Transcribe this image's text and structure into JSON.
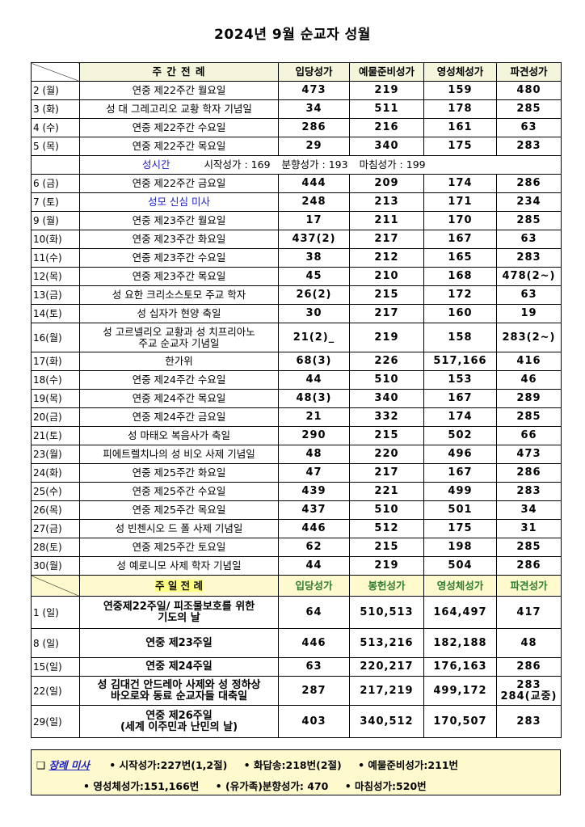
{
  "title": "2024년 9월 순교자 성월",
  "weekday_header": {
    "label": "주 간 전 례",
    "cols": [
      "입당성가",
      "예물준비성가",
      "영성체성가",
      "파견성가"
    ]
  },
  "weekday_rows_a": [
    {
      "day": "2 (월)",
      "name": "연중 제22주간 월요일",
      "v": [
        "473",
        "219",
        "159",
        "480"
      ]
    },
    {
      "day": "3 (화)",
      "name": "성 대 그레고리오 교황 학자 기념일",
      "v": [
        "34",
        "511",
        "178",
        "285"
      ]
    },
    {
      "day": "4 (수)",
      "name": "연중 제22주간 수요일",
      "v": [
        "286",
        "216",
        "161",
        "63"
      ]
    },
    {
      "day": "5 (목)",
      "name": "연중 제22주간 목요일",
      "v": [
        "29",
        "340",
        "175",
        "283"
      ]
    }
  ],
  "schedule": {
    "label": "성시간",
    "start": "시작성가 : 169",
    "incense": "분향성가 : 193",
    "end": "마침성가 : 199"
  },
  "weekday_rows_b": [
    {
      "day": "6 (금)",
      "name": "연중 제22주간 금요일",
      "v": [
        "444",
        "209",
        "174",
        "286"
      ]
    },
    {
      "day": "7 (토)",
      "name": "성모 신심 미사",
      "v": [
        "248",
        "213",
        "171",
        "234"
      ],
      "blue": true
    },
    {
      "day": "9 (월)",
      "name": "연중 제23주간 월요일",
      "v": [
        "17",
        "211",
        "170",
        "285"
      ]
    },
    {
      "day": "10(화)",
      "name": "연중 제23주간 화요일",
      "v": [
        "437(2)",
        "217",
        "167",
        "63"
      ]
    },
    {
      "day": "11(수)",
      "name": "연중 제23주간 수요일",
      "v": [
        "38",
        "212",
        "165",
        "283"
      ]
    },
    {
      "day": "12(목)",
      "name": "연중 제23주간 목요일",
      "v": [
        "45",
        "210",
        "168",
        "478(2~)"
      ]
    },
    {
      "day": "13(금)",
      "name": "성 요한 크리소스토모 주교 학자",
      "v": [
        "26(2)",
        "215",
        "172",
        "63"
      ]
    },
    {
      "day": "14(토)",
      "name": "성 십자가 현양 축일",
      "v": [
        "30",
        "217",
        "160",
        "19"
      ]
    }
  ],
  "row16": {
    "day": "16(월)",
    "name1": "성 고르넬리오 교황과 성 치프리아노",
    "name2": "주교 순교자 기념일",
    "v": [
      "21(2)_",
      "219",
      "158",
      "283(2~)"
    ]
  },
  "weekday_rows_c": [
    {
      "day": "17(화)",
      "name": "한가위",
      "v": [
        "68(3)",
        "226",
        "517,166",
        "416"
      ]
    },
    {
      "day": "18(수)",
      "name": "연중 제24주간 수요일",
      "v": [
        "44",
        "510",
        "153",
        "46"
      ]
    },
    {
      "day": "19(목)",
      "name": "연중 제24주간 목요일",
      "v": [
        "48(3)",
        "340",
        "167",
        "289"
      ]
    },
    {
      "day": "20(금)",
      "name": "연중 제24주간 금요일",
      "v": [
        "21",
        "332",
        "174",
        "285"
      ]
    },
    {
      "day": "21(토)",
      "name": "성 마태오 복음사가 축일",
      "v": [
        "290",
        "215",
        "502",
        "66"
      ]
    },
    {
      "day": "23(월)",
      "name": "피에트렐치나의 성 비오 사제 기념일",
      "v": [
        "48",
        "220",
        "496",
        "473"
      ]
    },
    {
      "day": "24(화)",
      "name": "연중 제25주간 화요일",
      "v": [
        "47",
        "217",
        "167",
        "286"
      ]
    },
    {
      "day": "25(수)",
      "name": "연중 제25주간 수요일",
      "v": [
        "439",
        "221",
        "499",
        "283"
      ]
    },
    {
      "day": "26(목)",
      "name": "연중 제25주간 목요일",
      "v": [
        "437",
        "510",
        "501",
        "34"
      ]
    },
    {
      "day": "27(금)",
      "name": "성 빈첸시오 드 폴 사제 기념일",
      "v": [
        "446",
        "512",
        "175",
        "31"
      ]
    },
    {
      "day": "28(토)",
      "name": "연중 제25주간 토요일",
      "v": [
        "62",
        "215",
        "198",
        "285"
      ]
    },
    {
      "day": "30(월)",
      "name": "성 예로니모 사제 학자 기념일",
      "v": [
        "44",
        "219",
        "504",
        "286"
      ]
    }
  ],
  "sunday_header": {
    "label": "주 일 전 례",
    "cols": [
      "입당성가",
      "봉헌성가",
      "영성체성가",
      "파견성가"
    ]
  },
  "sundays": {
    "s1": {
      "day": "1 (일)",
      "name1": "연중제22주일/ 피조물보호를 위한",
      "name2": "기도의 날",
      "v": [
        "64",
        "510,513",
        "164,497",
        "417"
      ]
    },
    "s8": {
      "day": "8 (일)",
      "name": "연중 제23주일",
      "v": [
        "446",
        "513,216",
        "182,188",
        "48"
      ]
    },
    "s15": {
      "day": "15(일)",
      "name": "연중 제24주일",
      "v": [
        "63",
        "220,217",
        "176,163",
        "286"
      ]
    },
    "s22": {
      "day": "22(일)",
      "name1": "성 김대건 안드레아 사제와 성 정하상",
      "name2": "바오로와 동료 순교자들 대축일",
      "v": [
        "287",
        "217,219",
        "499,172"
      ],
      "last1": "283",
      "last2": "284(교중)"
    },
    "s29": {
      "day": "29(일)",
      "name1": "연중 제26주일",
      "name2": "(세계 이주민과 난민의 날)",
      "v": [
        "403",
        "340,512",
        "170,507",
        "283"
      ]
    }
  },
  "footer": {
    "square": "❑",
    "funeral": "장례 미사",
    "line1": [
      "• 시작성가:227번(1,2절)",
      "• 화답송:218번(2절)",
      "• 예물준비성가:211번"
    ],
    "line2": [
      "• 영성체성가:151,166번",
      "• (유가족)분향성가: 470",
      "• 마침성가:520번"
    ]
  }
}
